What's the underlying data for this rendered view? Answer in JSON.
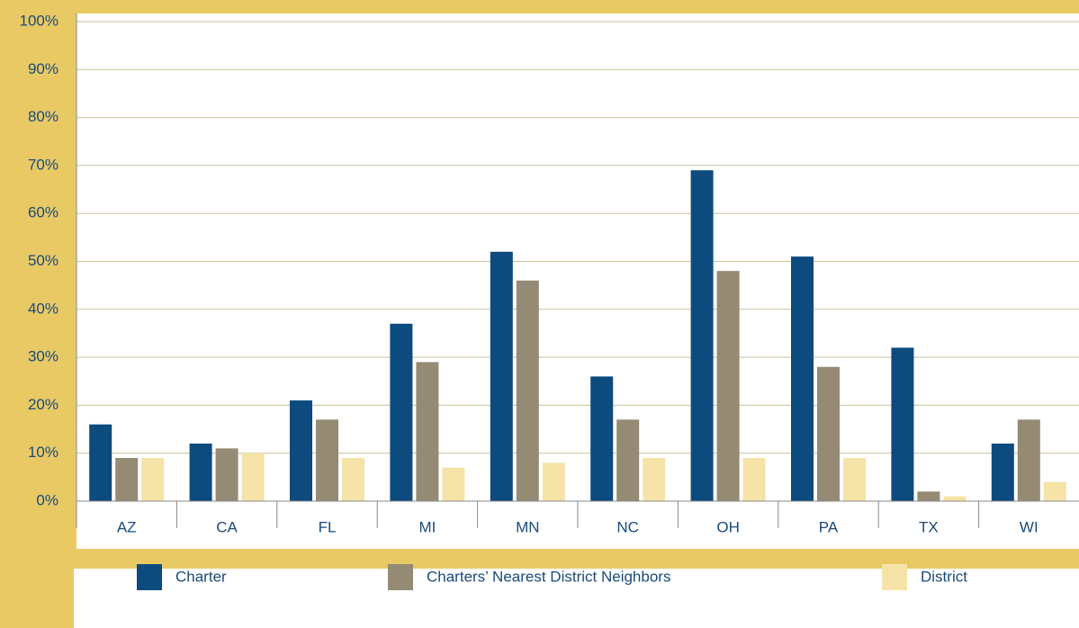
{
  "chart_data": {
    "type": "bar",
    "categories": [
      "AZ",
      "CA",
      "FL",
      "MI",
      "MN",
      "NC",
      "OH",
      "PA",
      "TX",
      "WI"
    ],
    "series": [
      {
        "name": "Charter",
        "color": "#0d4a7e",
        "values": [
          16,
          12,
          21,
          37,
          52,
          26,
          69,
          51,
          32,
          12
        ]
      },
      {
        "name": "Charters’ Nearest District Neighbors",
        "color": "#958a74",
        "values": [
          9,
          11,
          17,
          29,
          46,
          17,
          48,
          28,
          2,
          17
        ]
      },
      {
        "name": "District",
        "color": "#f5e3a8",
        "values": [
          9,
          10,
          9,
          7,
          8,
          9,
          9,
          9,
          1,
          4
        ]
      }
    ],
    "ylim": [
      0,
      100
    ],
    "yticks": [
      {
        "value": 0,
        "label": "0%"
      },
      {
        "value": 10,
        "label": "10%"
      },
      {
        "value": 20,
        "label": "20%"
      },
      {
        "value": 30,
        "label": "30%"
      },
      {
        "value": 40,
        "label": "40%"
      },
      {
        "value": 50,
        "label": "50%"
      },
      {
        "value": 60,
        "label": "60%"
      },
      {
        "value": 70,
        "label": "70%"
      },
      {
        "value": 80,
        "label": "80%"
      },
      {
        "value": 90,
        "label": "90%"
      },
      {
        "value": 100,
        "label": "100%"
      }
    ],
    "grid": true,
    "legend": "bottom"
  }
}
